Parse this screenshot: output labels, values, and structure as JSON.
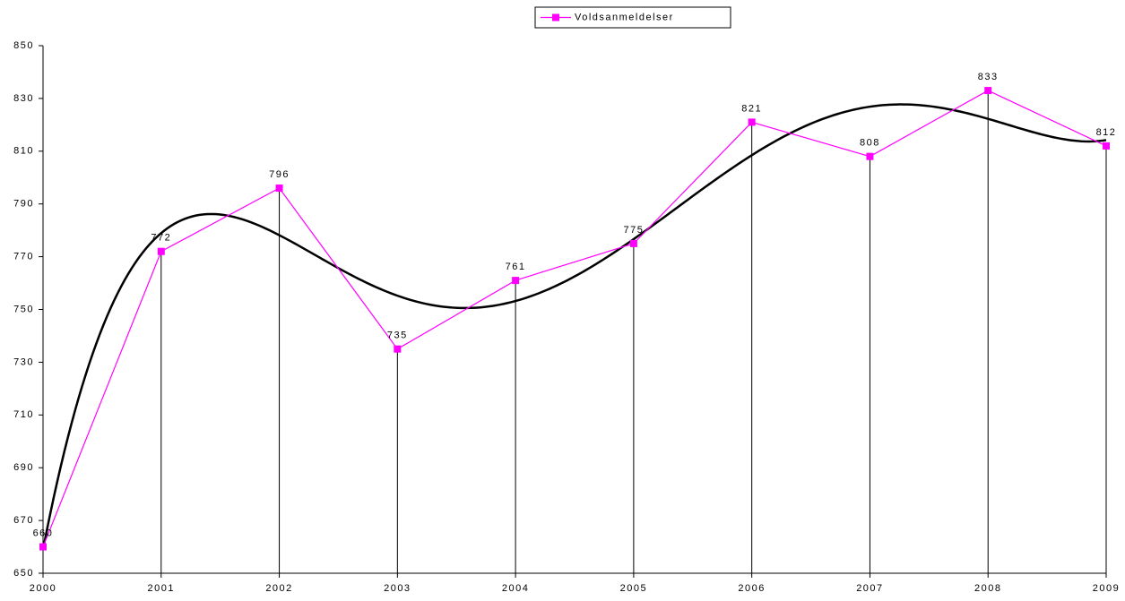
{
  "chart_data": {
    "type": "line",
    "x": [
      2000,
      2001,
      2002,
      2003,
      2004,
      2005,
      2006,
      2007,
      2008,
      2009
    ],
    "series": [
      {
        "name": "Voldsanmeldelser",
        "color": "#ff00ff",
        "values": [
          660,
          772,
          796,
          735,
          761,
          775,
          821,
          808,
          833,
          812
        ]
      }
    ],
    "xlim": [
      2000,
      2009
    ],
    "xticks": [
      2000,
      2001,
      2002,
      2003,
      2004,
      2005,
      2006,
      2007,
      2008,
      2009
    ],
    "ylim": [
      650,
      850
    ],
    "yticks": [
      650,
      670,
      690,
      710,
      730,
      750,
      770,
      790,
      810,
      830,
      850
    ],
    "drop_lines": true,
    "trendline": "polynomial",
    "trendline_order": 5,
    "legend": "top",
    "grid": false
  }
}
